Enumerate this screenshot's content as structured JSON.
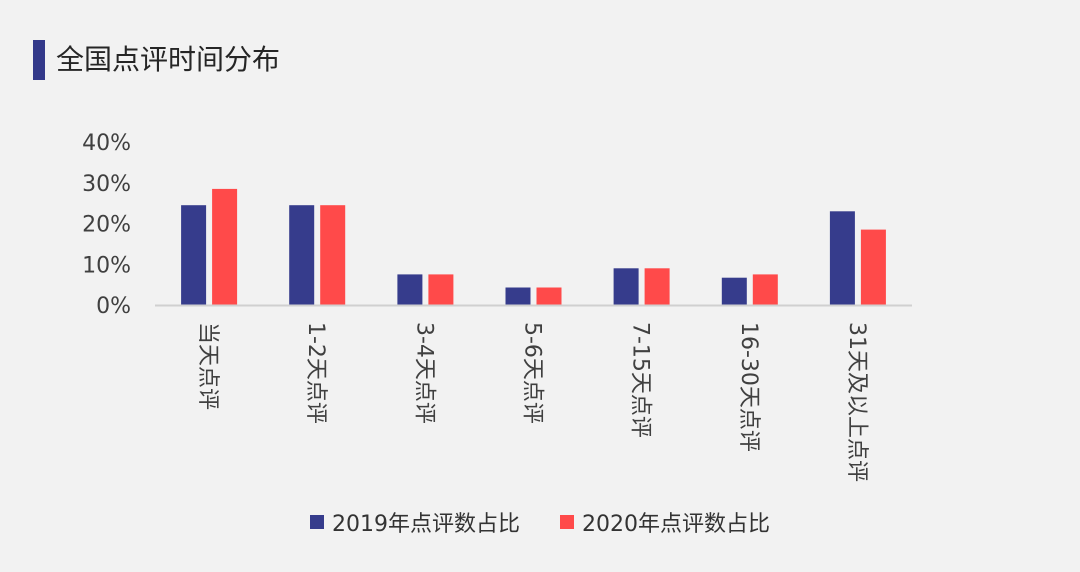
{
  "title": "全国点评时间分布",
  "colors": {
    "accent": "#33398a",
    "series_2019": "#363c8c",
    "series_2020": "#ff4a4a"
  },
  "chart_data": {
    "type": "bar",
    "title": "全国点评时间分布",
    "xlabel": "",
    "ylabel": "",
    "ylim": [
      0,
      40
    ],
    "yticks": [
      "0%",
      "10%",
      "20%",
      "30%",
      "40%"
    ],
    "ytick_values": [
      0,
      10,
      20,
      30,
      40
    ],
    "grid": false,
    "legend_position": "bottom",
    "categories": [
      "当天点评",
      "1-2天点评",
      "3-4天点评",
      "5-6天点评",
      "7-15天点评",
      "16-30天点评",
      "31天及以上点评"
    ],
    "series": [
      {
        "name": "2019年点评数占比",
        "color": "#363c8c",
        "values": [
          24.5,
          24.5,
          7.5,
          4.3,
          9.0,
          6.7,
          23.0
        ]
      },
      {
        "name": "2020年点评数占比",
        "color": "#ff4a4a",
        "values": [
          28.5,
          24.5,
          7.5,
          4.3,
          9.0,
          7.5,
          18.5
        ]
      }
    ]
  }
}
